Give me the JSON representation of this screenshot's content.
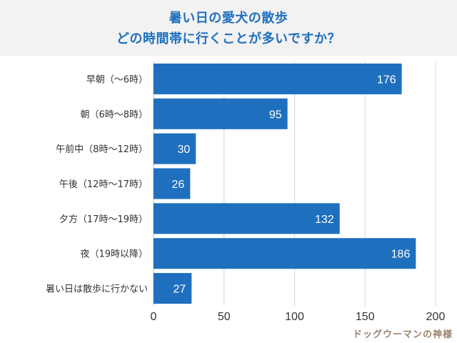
{
  "header": {
    "title_line1": "暑い日の愛犬の散歩",
    "title_line2": "どの時間帯に行くことが多いですか？"
  },
  "watermark": "ドッグウーマンの神様",
  "colors": {
    "bar": "#1f6fbf",
    "title": "#1f6fbf",
    "band": "#f2f2f2"
  },
  "chart_data": {
    "type": "bar",
    "orientation": "horizontal",
    "categories": [
      "早朝（〜6時）",
      "朝（6時〜8時）",
      "午前中（8時〜12時）",
      "午後（12時〜17時）",
      "夕方（17時〜19時）",
      "夜（19時以降）",
      "暑い日は散歩に行かない"
    ],
    "values": [
      176,
      95,
      30,
      26,
      132,
      186,
      27
    ],
    "xlim": [
      0,
      200
    ],
    "xticks": [
      0,
      50,
      100,
      150,
      200
    ],
    "grid": true,
    "title": "暑い日の愛犬の散歩 どの時間帯に行くことが多いですか？"
  }
}
